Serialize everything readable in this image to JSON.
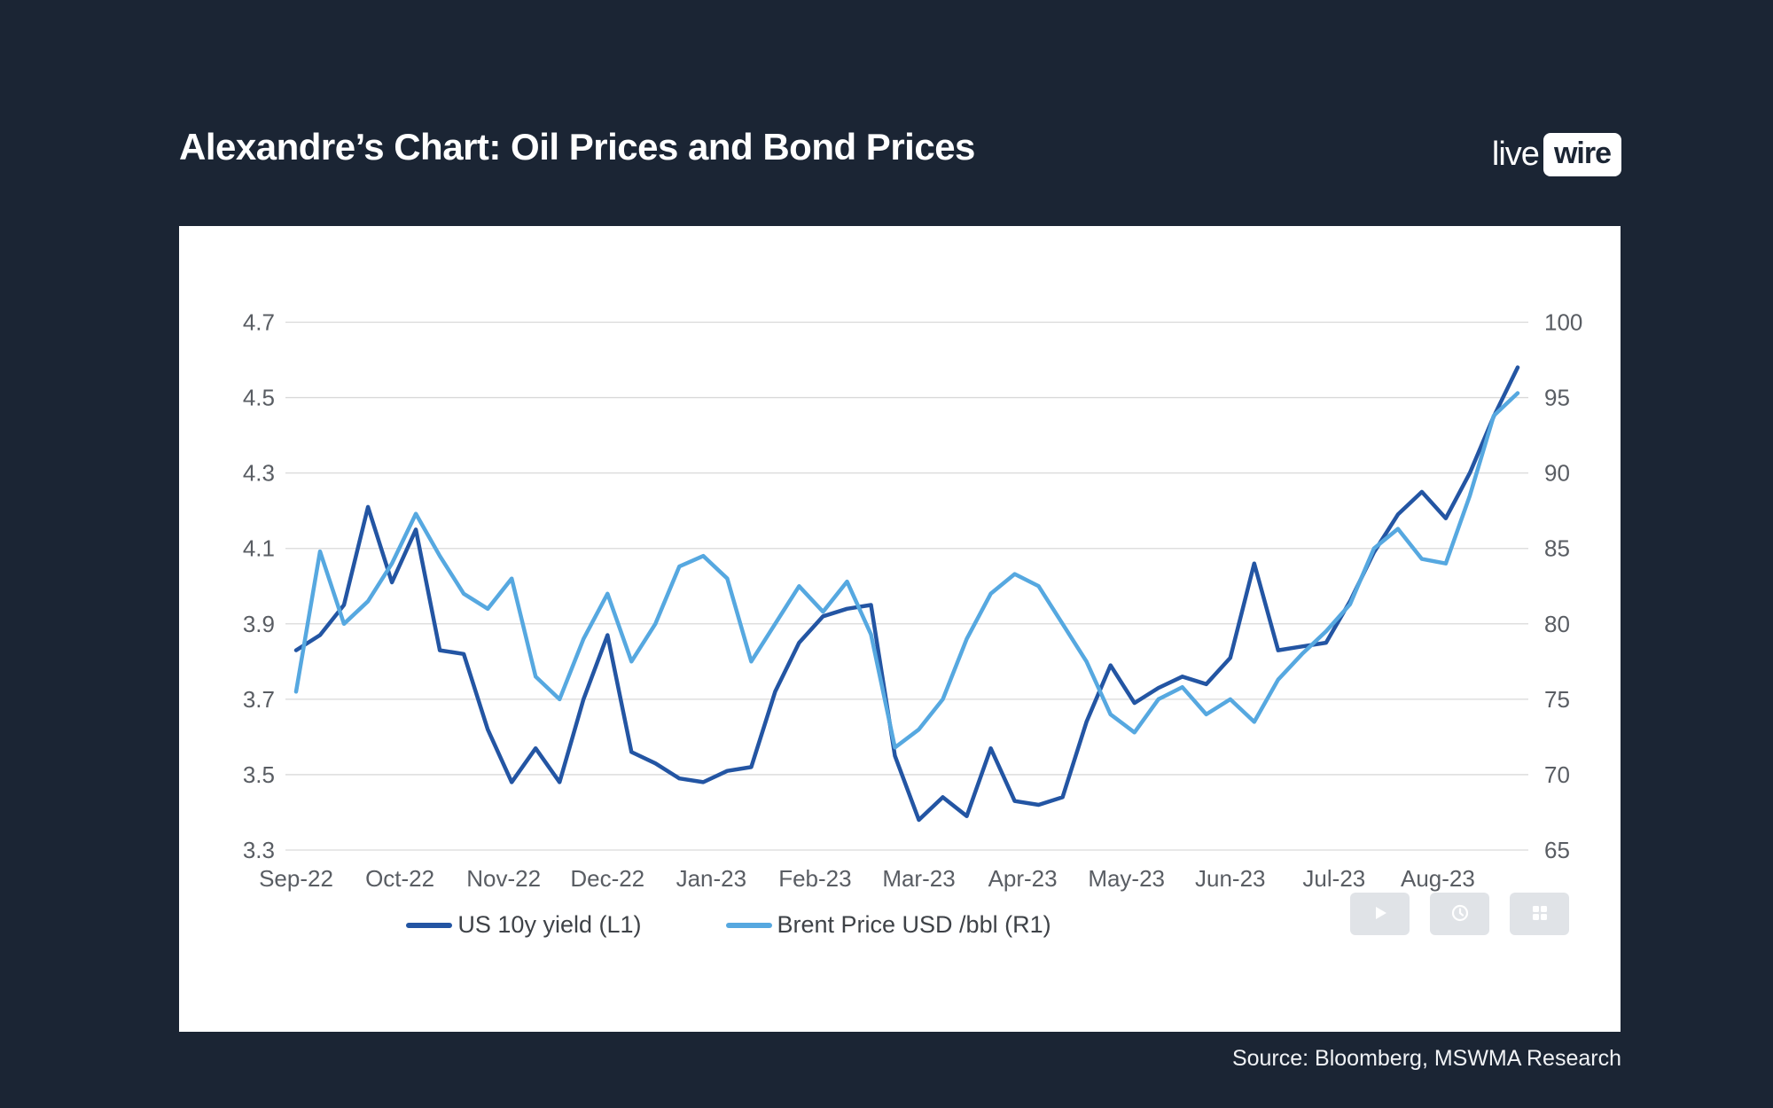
{
  "page": {
    "title": "Alexandre’s Chart: Oil Prices and Bond Prices",
    "source": "Source: Bloomberg, MSWMA Research",
    "logo": {
      "part1": "live",
      "part2": "wire"
    }
  },
  "colors": {
    "background": "#1b2534",
    "card": "#ffffff",
    "gridline": "#d9d9d9",
    "axis_text": "#595d63",
    "legend_text": "#3e4247",
    "us10y_line": "#2355a3",
    "brent_line": "#56a8e0"
  },
  "overlay_buttons": [
    "play-icon",
    "clock-icon",
    "grid-icon"
  ],
  "chart_data": {
    "type": "line",
    "title": "Oil Prices and Bond Prices",
    "grid": "horizontal",
    "legend_position": "bottom",
    "points_per_month": 4.3333,
    "x_tick_labels": [
      "Sep-22",
      "Oct-22",
      "Nov-22",
      "Dec-22",
      "Jan-23",
      "Feb-23",
      "Mar-23",
      "Apr-23",
      "May-23",
      "Jun-23",
      "Jul-23",
      "Aug-23"
    ],
    "left_axis": {
      "min": 3.3,
      "max": 4.7,
      "decimals": 1,
      "ticks": [
        4.7,
        4.5,
        4.3,
        4.1,
        3.9,
        3.7,
        3.5,
        3.3
      ]
    },
    "right_axis": {
      "min": 65,
      "max": 100,
      "decimals": 0,
      "ticks": [
        100,
        95,
        90,
        85,
        80,
        75,
        70,
        65
      ]
    },
    "series": [
      {
        "name": "US 10y yield (L1)",
        "axis": "left",
        "color": "#2355a3",
        "values": [
          3.83,
          3.87,
          3.95,
          4.21,
          4.01,
          4.15,
          3.83,
          3.82,
          3.62,
          3.48,
          3.57,
          3.48,
          3.7,
          3.87,
          3.56,
          3.53,
          3.49,
          3.48,
          3.51,
          3.52,
          3.72,
          3.85,
          3.92,
          3.94,
          3.95,
          3.55,
          3.38,
          3.44,
          3.39,
          3.57,
          3.43,
          3.42,
          3.44,
          3.64,
          3.79,
          3.69,
          3.73,
          3.76,
          3.74,
          3.81,
          4.06,
          3.83,
          3.84,
          3.85,
          3.96,
          4.09,
          4.19,
          4.25,
          4.18,
          4.3,
          4.45,
          4.58
        ]
      },
      {
        "name": "Brent Price USD /bbl (R1)",
        "axis": "right",
        "color": "#56a8e0",
        "values": [
          75.5,
          84.8,
          80,
          81.5,
          84,
          87.3,
          84.5,
          82,
          81,
          83,
          76.5,
          75,
          79,
          82,
          77.5,
          80,
          83.8,
          84.5,
          83,
          77.5,
          80,
          82.5,
          80.8,
          82.8,
          79.3,
          71.8,
          73,
          75,
          79,
          82,
          83.3,
          82.5,
          80,
          77.5,
          74,
          72.8,
          75,
          75.8,
          74,
          75,
          73.5,
          76.3,
          78,
          79.5,
          81.3,
          85,
          86.3,
          84.3,
          84,
          88.5,
          93.8,
          95.3
        ]
      }
    ]
  }
}
